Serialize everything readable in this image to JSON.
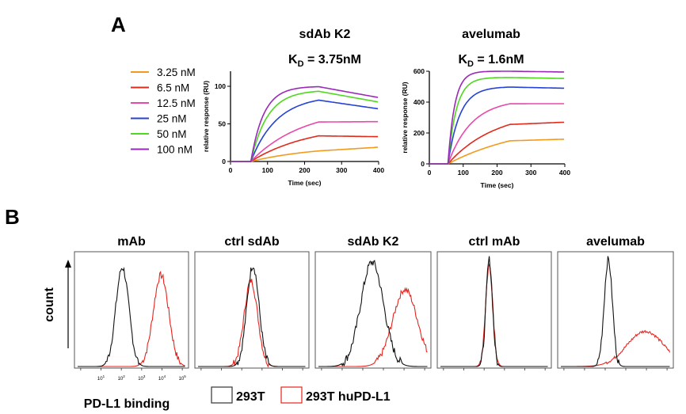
{
  "panel_labels": {
    "a": "A",
    "b": "B"
  },
  "colors": {
    "3.25 nM": "#f39a1c",
    "6.5 nM": "#e02a1a",
    "12.5 nM": "#ea48a8",
    "25 nM": "#2442d8",
    "50 nM": "#4ed81e",
    "100 nM": "#9a28b8",
    "control": "#111111",
    "huPDL1": "#e8231c"
  },
  "legend_a": {
    "entries": [
      "3.25 nM",
      "6.5 nM",
      "12.5 nM",
      "25 nM",
      "50 nM",
      "100 nM"
    ]
  },
  "legend_b": {
    "control_label": "293T",
    "pdl1_label": "293T huPD-L1"
  },
  "chart_data": [
    {
      "type": "line",
      "title": "sdAb K2",
      "kd_prefix": "K",
      "kd_sub": "D",
      "kd_value": " = 3.75nM",
      "xlabel": "Time (sec)",
      "ylabel": "relative response (RU)",
      "xlim": [
        0,
        400
      ],
      "ylim": [
        0,
        120
      ],
      "xticks": [
        0,
        100,
        200,
        300,
        400
      ],
      "yticks": [
        0,
        50,
        100
      ],
      "inject_start": 55,
      "inject_end": 238,
      "series": [
        {
          "name": "3.25 nM",
          "plateau": 22,
          "tau": 180,
          "end": 19
        },
        {
          "name": "6.5 nM",
          "plateau": 50,
          "tau": 160,
          "end": 33
        },
        {
          "name": "12.5 nM",
          "plateau": 72,
          "tau": 140,
          "end": 53
        },
        {
          "name": "25 nM",
          "plateau": 88,
          "tau": 70,
          "end": 70
        },
        {
          "name": "50 nM",
          "plateau": 95,
          "tau": 45,
          "end": 79
        },
        {
          "name": "100 nM",
          "plateau": 100,
          "tau": 35,
          "end": 85
        }
      ]
    },
    {
      "type": "line",
      "title": "avelumab",
      "kd_prefix": "K",
      "kd_sub": "D",
      "kd_value": " = 1.6nM",
      "xlabel": "Time (sec)",
      "ylabel": "relative response (RU)",
      "xlim": [
        0,
        400
      ],
      "ylim": [
        0,
        600
      ],
      "xticks": [
        0,
        100,
        200,
        300,
        400
      ],
      "yticks": [
        0,
        200,
        400,
        600
      ],
      "inject_start": 55,
      "inject_end": 238,
      "series": [
        {
          "name": "3.25 nM",
          "plateau": 280,
          "tau": 240,
          "end": 160
        },
        {
          "name": "6.5 nM",
          "plateau": 350,
          "tau": 140,
          "end": 270
        },
        {
          "name": "12.5 nM",
          "plateau": 420,
          "tau": 70,
          "end": 390
        },
        {
          "name": "25 nM",
          "plateau": 500,
          "tau": 35,
          "end": 490
        },
        {
          "name": "50 nM",
          "plateau": 560,
          "tau": 25,
          "end": 553
        },
        {
          "name": "100 nM",
          "plateau": 600,
          "tau": 20,
          "end": 595
        }
      ]
    },
    {
      "type": "histogram",
      "title": "mAb",
      "control_center": 2.2,
      "control_width": 0.32,
      "control_peak": 0.9,
      "pdl1_center": 4.1,
      "pdl1_width": 0.38,
      "pdl1_peak": 0.83,
      "ytitle": "count",
      "xtitle": "PD-L1 binding",
      "xtick_labels": [
        "10",
        "1",
        "10",
        "2",
        "10",
        "3",
        "10",
        "4",
        "10",
        "5"
      ]
    },
    {
      "type": "histogram",
      "title": "ctrl sdAb",
      "control_center": 2.7,
      "control_width": 0.3,
      "control_peak": 0.92,
      "pdl1_center": 2.6,
      "pdl1_width": 0.33,
      "pdl1_peak": 0.78
    },
    {
      "type": "histogram",
      "title": "sdAb K2",
      "control_center": 2.6,
      "control_width": 0.55,
      "control_peak": 0.95,
      "pdl1_center": 4.2,
      "pdl1_width": 0.6,
      "pdl1_peak": 0.7
    },
    {
      "type": "histogram",
      "title": "ctrl mAb",
      "control_center": 2.4,
      "control_width": 0.16,
      "control_peak": 0.97,
      "pdl1_center": 2.4,
      "pdl1_width": 0.18,
      "pdl1_peak": 0.92
    },
    {
      "type": "histogram",
      "title": "avelumab",
      "control_center": 2.3,
      "control_width": 0.2,
      "control_peak": 0.97,
      "pdl1_center": 4.1,
      "pdl1_width": 0.9,
      "pdl1_peak": 0.32
    }
  ]
}
